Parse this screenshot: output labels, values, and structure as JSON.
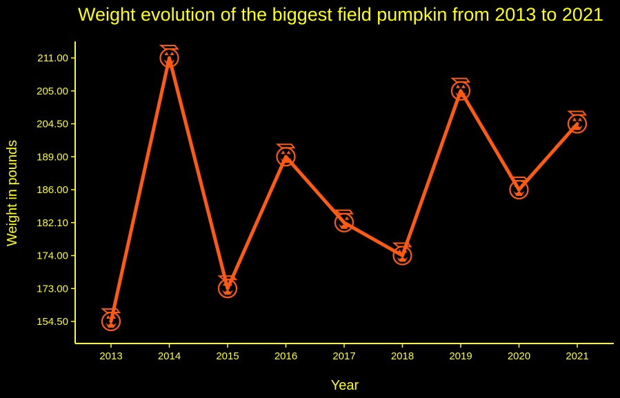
{
  "chart_data": {
    "type": "line",
    "title": "Weight evolution of the biggest field pumpkin from 2013 to 2021",
    "xlabel": "Year",
    "ylabel": "Weight in pounds",
    "categories": [
      "2013",
      "2014",
      "2015",
      "2016",
      "2017",
      "2018",
      "2019",
      "2020",
      "2021"
    ],
    "y_tick_labels": [
      "154.50",
      "173.00",
      "174.00",
      "182.10",
      "186.00",
      "189.00",
      "204.50",
      "205.00",
      "211.00"
    ],
    "series": [
      {
        "values": [
          "154.50",
          "211.00",
          "173.00",
          "189.00",
          "182.10",
          "174.00",
          "205.00",
          "186.00",
          "204.50"
        ]
      }
    ],
    "y_scale": "categorical (values shown as ordered discrete levels)",
    "marker": "pumpkin-icon",
    "grid": false,
    "colors": {
      "background": "#000000",
      "text": "#FFFF00",
      "line": "#FF5A0F",
      "axis": "#FFFF00"
    }
  }
}
